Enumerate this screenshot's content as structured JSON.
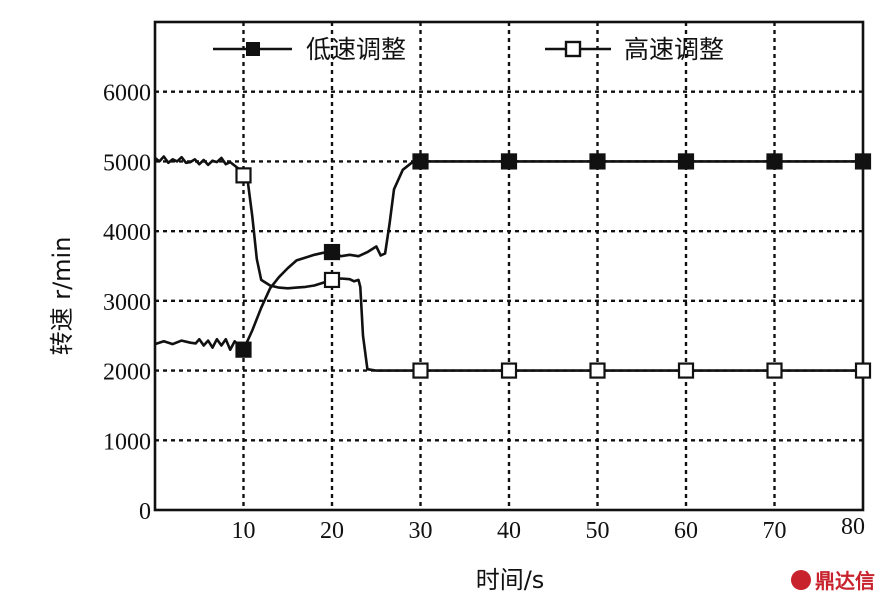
{
  "chart_data": {
    "type": "line",
    "xlabel": "时间/s",
    "ylabel": "转速 r/min",
    "xlim": [
      0,
      80
    ],
    "ylim": [
      0,
      7000
    ],
    "x_ticks": [
      {
        "v": 10,
        "label": "10"
      },
      {
        "v": 20,
        "label": "20"
      },
      {
        "v": 30,
        "label": "30"
      },
      {
        "v": 40,
        "label": "40"
      },
      {
        "v": 50,
        "label": "50"
      },
      {
        "v": 60,
        "label": "60"
      },
      {
        "v": 70,
        "label": "70"
      },
      {
        "v": 80,
        "label": "80"
      }
    ],
    "y_ticks": [
      {
        "v": 0,
        "label": "0"
      },
      {
        "v": 1000,
        "label": "1000"
      },
      {
        "v": 2000,
        "label": "2000"
      },
      {
        "v": 3000,
        "label": "3000"
      },
      {
        "v": 4000,
        "label": "4000"
      },
      {
        "v": 5000,
        "label": "5000"
      },
      {
        "v": 6000,
        "label": "6000"
      }
    ],
    "grid": true,
    "legend_position": "top",
    "series": [
      {
        "name": "低速调整",
        "marker": "filled-square",
        "x": [
          0,
          1,
          2,
          3,
          4,
          4.6,
          5,
          5.5,
          6,
          6.5,
          7,
          7.5,
          8,
          8.5,
          9,
          9.5,
          10,
          11,
          12,
          13,
          14,
          15,
          16,
          17,
          18,
          19,
          20,
          21,
          22,
          23,
          24,
          25,
          25.5,
          26,
          26.5,
          27,
          28,
          29,
          30,
          40,
          50,
          60,
          70,
          80
        ],
        "y": [
          2380,
          2420,
          2380,
          2430,
          2400,
          2390,
          2450,
          2360,
          2430,
          2330,
          2450,
          2360,
          2450,
          2300,
          2420,
          2360,
          2300,
          2580,
          2900,
          3180,
          3340,
          3470,
          3580,
          3620,
          3660,
          3690,
          3700,
          3640,
          3660,
          3640,
          3700,
          3780,
          3650,
          3680,
          4100,
          4600,
          4880,
          4980,
          5000,
          5000,
          5000,
          5000,
          5000,
          5000
        ],
        "marker_x": [
          10,
          20,
          30,
          40,
          50,
          60,
          70,
          80
        ]
      },
      {
        "name": "高速调整",
        "marker": "open-square",
        "x": [
          0,
          0.5,
          1,
          1.5,
          2,
          2.5,
          3,
          3.5,
          4,
          4.5,
          5,
          5.5,
          6,
          6.5,
          7,
          7.5,
          8,
          8.5,
          9,
          9.5,
          10,
          10.5,
          11,
          11.5,
          12,
          13,
          14,
          15,
          16,
          17,
          18,
          19,
          20,
          21,
          22,
          22.5,
          23,
          23.2,
          23.5,
          24,
          25,
          30,
          40,
          50,
          60,
          70,
          80
        ],
        "y": [
          5050,
          5000,
          5070,
          4980,
          5030,
          5000,
          5060,
          4980,
          4990,
          5030,
          4960,
          5020,
          4950,
          5010,
          4990,
          5050,
          4960,
          4990,
          4940,
          4890,
          4800,
          4700,
          4200,
          3600,
          3300,
          3220,
          3190,
          3180,
          3190,
          3200,
          3220,
          3260,
          3300,
          3320,
          3310,
          3280,
          3300,
          3200,
          2500,
          2020,
          2000,
          2000,
          2000,
          2000,
          2000,
          2000,
          2000
        ],
        "marker_x": [
          10,
          20,
          30,
          40,
          50,
          60,
          70,
          80
        ]
      }
    ]
  },
  "watermark": {
    "text": "鼎达信",
    "color": "#c8232c"
  }
}
